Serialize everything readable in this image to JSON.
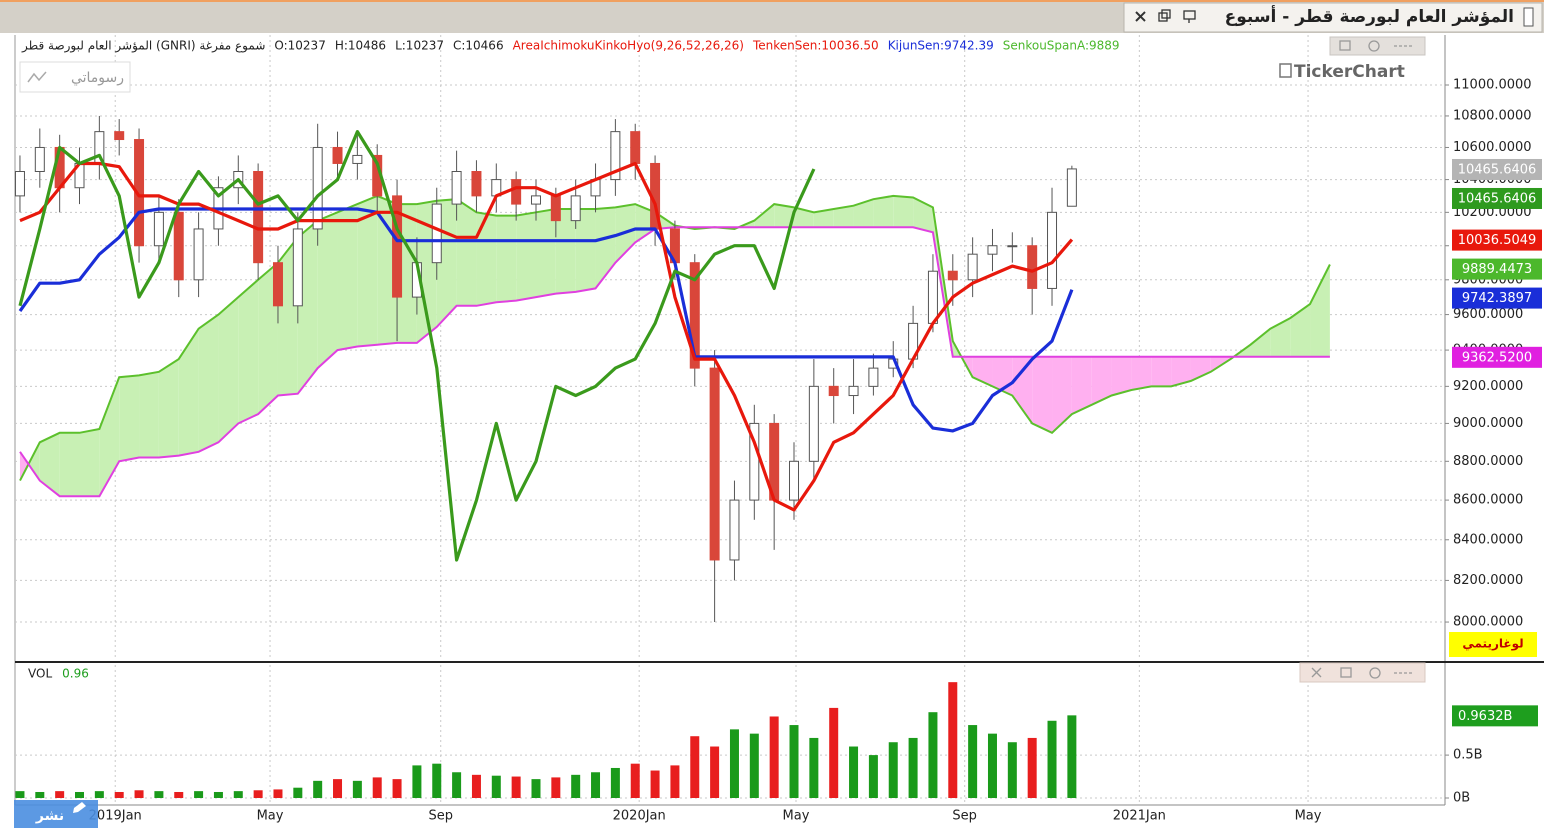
{
  "chart_data": {
    "type": "candlestick",
    "title": "المؤشر العام لبورصة قطر - أسبوع",
    "legend": [
      {
        "text": "المؤشر العام لبورصة قطر (GNRI) شموع مفرغة",
        "color": "#222222"
      },
      {
        "text": "O:10237",
        "color": "#222222"
      },
      {
        "text": "H:10486",
        "color": "#222222"
      },
      {
        "text": "L:10237",
        "color": "#222222"
      },
      {
        "text": "C:10466",
        "color": "#222222"
      },
      {
        "text": "AreaIchimokuKinkoHyo(9,26,52,26,26)",
        "color": "#e8180c"
      },
      {
        "text": "TenkenSen:10036.50",
        "color": "#e8180c"
      },
      {
        "text": "KijunSen:9742.39",
        "color": "#1a2ed8"
      },
      {
        "text": "SenkouSpanA:9889",
        "color": "#4cb82c"
      }
    ],
    "drawings_button": "رسوماتي",
    "brand": "TickerChart",
    "log_label": "لوغاريتمي",
    "publish_button": "نشر",
    "log": true,
    "grid": true,
    "xlim": [
      -0.25,
      71.8
    ],
    "xticks": [
      {
        "value": 4.8,
        "label": "2019Jan"
      },
      {
        "value": 12.6,
        "label": "May"
      },
      {
        "value": 21.2,
        "label": "Sep"
      },
      {
        "value": 31.2,
        "label": "2020Jan"
      },
      {
        "value": 39.1,
        "label": "May"
      },
      {
        "value": 47.6,
        "label": "Sep"
      },
      {
        "value": 56.4,
        "label": "2021Jan"
      },
      {
        "value": 64.9,
        "label": "May"
      }
    ],
    "ylim": [
      7822,
      11331
    ],
    "yticks": [
      {
        "value": 8000,
        "label": "8000.0000"
      },
      {
        "value": 8200,
        "label": "8200.0000"
      },
      {
        "value": 8400,
        "label": "8400.0000"
      },
      {
        "value": 8600,
        "label": "8600.0000"
      },
      {
        "value": 8800,
        "label": "8800.0000"
      },
      {
        "value": 9000,
        "label": "9000.0000"
      },
      {
        "value": 9200,
        "label": "9200.0000"
      },
      {
        "value": 9400,
        "label": "9400.0000"
      },
      {
        "value": 9600,
        "label": "9600.0000"
      },
      {
        "value": 9800,
        "label": "9800.0000"
      },
      {
        "value": 10000,
        "label": "10000.0000"
      },
      {
        "value": 10200,
        "label": "10200.0000"
      },
      {
        "value": 10400,
        "label": "10400.0000"
      },
      {
        "value": 10600,
        "label": "10600.0000"
      },
      {
        "value": 10800,
        "label": "10800.0000"
      },
      {
        "value": 11000,
        "label": "11000.0000"
      }
    ],
    "up_color": "#ffffff",
    "down_color": "#d9463a",
    "wick_color": "#555555",
    "open": [
      10300,
      10450,
      10600,
      10350,
      10500,
      10700,
      10650,
      10000,
      10200,
      9800,
      10100,
      10350,
      10450,
      9900,
      9650,
      10100,
      10600,
      10500,
      10550,
      10300,
      9700,
      9900,
      10250,
      10450,
      10300,
      10400,
      10250,
      10300,
      10150,
      10300,
      10400,
      10700,
      10500,
      10100,
      9900,
      9300,
      8300,
      8600,
      9000,
      8600,
      8800,
      9200,
      9150,
      9200,
      9300,
      9350,
      9550,
      9850,
      9800,
      9950,
      10000,
      10000,
      9750,
      10237
    ],
    "high": [
      10550,
      10720,
      10680,
      10600,
      10800,
      10780,
      10720,
      10300,
      10280,
      10200,
      10420,
      10550,
      10500,
      10000,
      10200,
      10750,
      10700,
      10680,
      10620,
      10400,
      10050,
      10350,
      10580,
      10520,
      10500,
      10450,
      10400,
      10350,
      10400,
      10500,
      10780,
      10750,
      10550,
      10150,
      9950,
      9400,
      8700,
      9100,
      9050,
      8900,
      9350,
      9300,
      9350,
      9380,
      9450,
      9650,
      9950,
      9950,
      10050,
      10100,
      10080,
      10050,
      10350,
      10486
    ],
    "low": [
      10200,
      10350,
      10200,
      10250,
      10400,
      10550,
      9900,
      9900,
      9700,
      9700,
      10000,
      10250,
      9800,
      9550,
      9550,
      10000,
      10400,
      10400,
      10200,
      9450,
      9600,
      9800,
      10150,
      10200,
      10200,
      10150,
      10150,
      10050,
      10100,
      10200,
      10300,
      10400,
      10000,
      9800,
      9200,
      8000,
      8200,
      8500,
      8350,
      8500,
      8700,
      9000,
      9050,
      9150,
      9250,
      9300,
      9500,
      9650,
      9700,
      9850,
      9900,
      9600,
      9650,
      10237
    ],
    "close": [
      10450,
      10600,
      10350,
      10500,
      10700,
      10650,
      10000,
      10200,
      9800,
      10100,
      10350,
      10450,
      9900,
      9650,
      10100,
      10600,
      10500,
      10550,
      10300,
      9700,
      9900,
      10250,
      10450,
      10300,
      10400,
      10250,
      10300,
      10150,
      10300,
      10400,
      10700,
      10500,
      10100,
      9900,
      9300,
      8300,
      8600,
      9000,
      8600,
      8800,
      9200,
      9150,
      9200,
      9300,
      9350,
      9550,
      9850,
      9800,
      9950,
      10000,
      10000,
      9750,
      10200,
      10466
    ],
    "cloud": {
      "up_color": "#c8f0b4",
      "down_color": "#ffb0f0",
      "span_a": {
        "color": "#5cc02c",
        "values": [
          8700,
          8900,
          8950,
          8950,
          8970,
          9250,
          9260,
          9280,
          9350,
          9520,
          9600,
          9700,
          9800,
          9900,
          10050,
          10150,
          10200,
          10250,
          10300,
          10250,
          10250,
          10270,
          10280,
          10200,
          10180,
          10180,
          10200,
          10220,
          10220,
          10220,
          10230,
          10250,
          10200,
          10120,
          10100,
          10110,
          10100,
          10150,
          10250,
          10230,
          10200,
          10220,
          10240,
          10280,
          10300,
          10290,
          10230,
          9450,
          9250,
          9200,
          9150,
          9000,
          8950,
          9050,
          9100,
          9150,
          9180,
          9200,
          9200,
          9230,
          9280,
          9350,
          9430,
          9520,
          9580,
          9660,
          9889.4473
        ]
      },
      "span_b": {
        "color": "#e040e0",
        "values": [
          8850,
          8700,
          8620,
          8620,
          8620,
          8800,
          8820,
          8820,
          8830,
          8850,
          8900,
          9000,
          9050,
          9150,
          9160,
          9300,
          9400,
          9420,
          9430,
          9440,
          9440,
          9530,
          9650,
          9650,
          9670,
          9680,
          9700,
          9720,
          9730,
          9750,
          9900,
          10020,
          10100,
          10110,
          10110,
          10110,
          10110,
          10110,
          10110,
          10110,
          10110,
          10110,
          10110,
          10110,
          10110,
          10110,
          10080,
          9362.52,
          9362.52,
          9362.52,
          9362.52,
          9362.52,
          9362.52,
          9362.52,
          9362.52,
          9362.52,
          9362.52,
          9362.52,
          9362.52,
          9362.52,
          9362.52,
          9362.52,
          9362.52,
          9362.52,
          9362.52,
          9362.52,
          9362.52
        ]
      }
    },
    "lines": [
      {
        "color": "#1a2ed8",
        "values": [
          9620,
          9780,
          9780,
          9800,
          9950,
          10050,
          10200,
          10220,
          10220,
          10220,
          10220,
          10220,
          10220,
          10220,
          10220,
          10220,
          10220,
          10220,
          10200,
          10030,
          10030,
          10030,
          10030,
          10030,
          10030,
          10030,
          10030,
          10030,
          10030,
          10030,
          10060,
          10100,
          10100,
          9900,
          9362,
          9362,
          9362,
          9362,
          9362,
          9362,
          9362,
          9362,
          9362,
          9362,
          9362,
          9100,
          8975,
          8960,
          9000,
          9150,
          9220,
          9350,
          9450,
          9742.3897
        ]
      },
      {
        "color": "#e8180c",
        "values": [
          10150,
          10200,
          10350,
          10500,
          10500,
          10480,
          10300,
          10300,
          10250,
          10250,
          10200,
          10150,
          10100,
          10100,
          10150,
          10150,
          10150,
          10150,
          10200,
          10200,
          10150,
          10100,
          10050,
          10050,
          10300,
          10350,
          10350,
          10300,
          10350,
          10400,
          10450,
          10500,
          10250,
          9700,
          9350,
          9350,
          9150,
          8900,
          8600,
          8550,
          8700,
          8900,
          8950,
          9050,
          9150,
          9350,
          9550,
          9700,
          9780,
          9830,
          9880,
          9850,
          9900,
          10036.5049
        ]
      },
      {
        "color": "#3a9a1c",
        "values": [
          9650,
          10100,
          10600,
          10500,
          10550,
          10300,
          9700,
          9900,
          10250,
          10450,
          10300,
          10400,
          10250,
          10300,
          10150,
          10300,
          10400,
          10700,
          10500,
          10100,
          9900,
          9300,
          8300,
          8600,
          9000,
          8600,
          8800,
          9200,
          9150,
          9200,
          9300,
          9350,
          9550,
          9850,
          9800,
          9950,
          10000,
          10000,
          9750,
          10200,
          10465.6406
        ]
      }
    ],
    "price_labels": [
      {
        "label": "10465.6406",
        "value": 10465.6406,
        "color": "#b4b4b4"
      },
      {
        "label": "10465.6406",
        "value": 10465.6406,
        "color": "#2e9a1e"
      },
      {
        "label": "10036.5049",
        "value": 10036.5049,
        "color": "#e8180c"
      },
      {
        "label": "9889.4473",
        "value": 9889.4473,
        "color": "#4cb82c"
      },
      {
        "label": "9742.3897",
        "value": 9742.3897,
        "color": "#1a2ed8"
      },
      {
        "label": "9362.5200",
        "value": 9362.52,
        "color": "#e020e0"
      }
    ],
    "volume": {
      "name": "VOL",
      "current": "0.96",
      "ylim": [
        0,
        1.55
      ],
      "yticks": [
        {
          "value": 0,
          "label": "0B"
        },
        {
          "value": 0.5,
          "label": "0.5B"
        }
      ],
      "up_color": "#1a9a1a",
      "down_color": "#e81e1e",
      "label_color": "#1e9e1e",
      "values": [
        0.08,
        0.07,
        0.08,
        0.07,
        0.08,
        0.07,
        0.09,
        0.08,
        0.07,
        0.08,
        0.07,
        0.08,
        0.09,
        0.1,
        0.12,
        0.2,
        0.22,
        0.2,
        0.24,
        0.22,
        0.38,
        0.4,
        0.3,
        0.27,
        0.26,
        0.25,
        0.22,
        0.24,
        0.27,
        0.3,
        0.35,
        0.4,
        0.32,
        0.38,
        0.72,
        0.6,
        0.8,
        0.75,
        0.95,
        0.85,
        0.7,
        1.05,
        0.6,
        0.5,
        0.65,
        0.7,
        1.0,
        1.35,
        0.85,
        0.75,
        0.65,
        0.7,
        0.9,
        0.9632
      ],
      "value_label": {
        "label": "0.9632B",
        "value": 0.9632
      }
    }
  }
}
